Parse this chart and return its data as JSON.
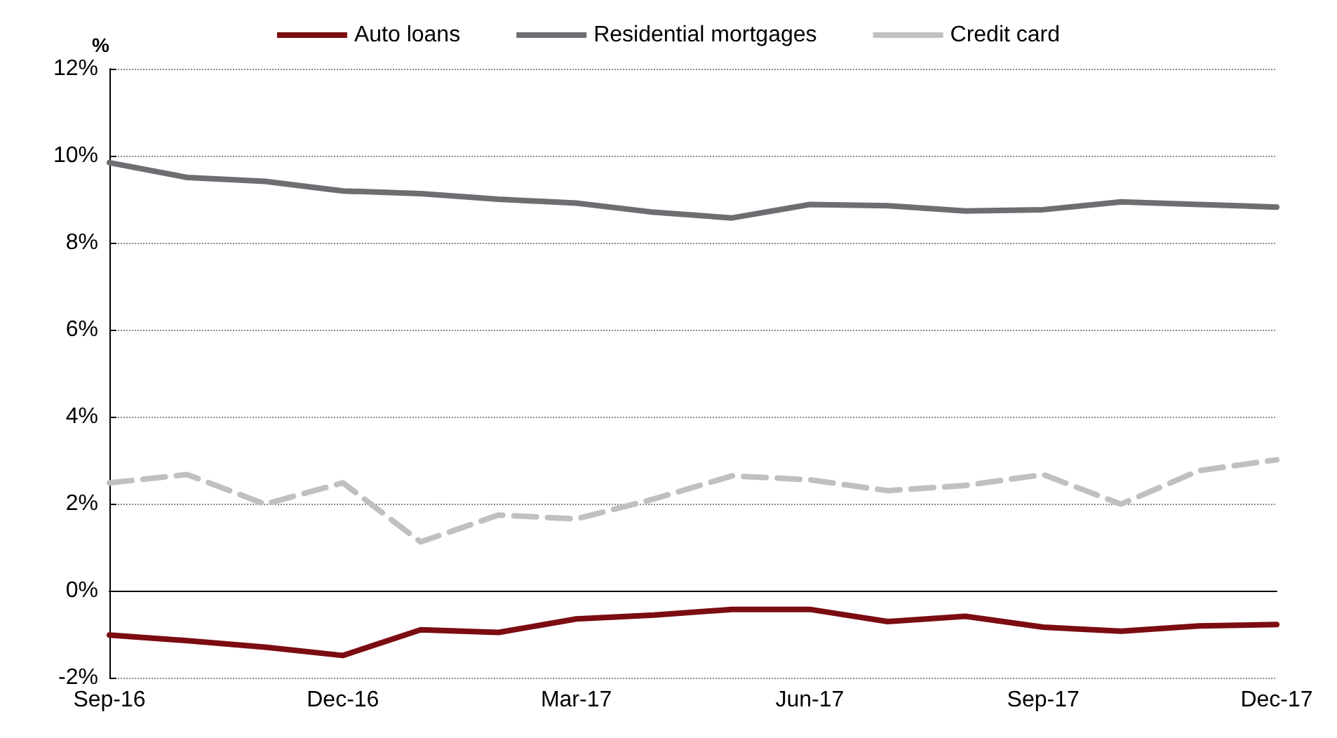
{
  "chart_data": {
    "type": "line",
    "ylabel": "%",
    "categories": [
      "Sep-16",
      null,
      null,
      "Dec-16",
      null,
      null,
      "Mar-17",
      null,
      null,
      "Jun-17",
      null,
      null,
      "Sep-17",
      null,
      null,
      "Dec-17"
    ],
    "series": [
      {
        "name": "Auto loans",
        "color": "#7b0c12",
        "line_style": "solid",
        "values": [
          -1.02,
          -1.15,
          -1.3,
          -1.49,
          -0.9,
          -0.96,
          -0.65,
          -0.56,
          -0.43,
          -0.43,
          -0.71,
          -0.59,
          -0.84,
          -0.93,
          -0.81,
          -0.78
        ]
      },
      {
        "name": "Residential mortgages",
        "color": "#6d6e71",
        "line_style": "solid",
        "values": [
          9.84,
          9.5,
          9.41,
          9.19,
          9.13,
          9.0,
          8.91,
          8.7,
          8.57,
          8.88,
          8.85,
          8.73,
          8.76,
          8.94,
          8.88,
          8.82
        ]
      },
      {
        "name": "Credit card",
        "color": "#c0c0c0",
        "line_style": "dashed",
        "values": [
          2.48,
          2.67,
          1.99,
          2.48,
          1.12,
          1.74,
          1.65,
          2.11,
          2.64,
          2.55,
          2.3,
          2.42,
          2.67,
          1.99,
          2.76,
          3.01
        ]
      }
    ],
    "ylim": [
      -2,
      12
    ],
    "yticks": [
      {
        "value": -2,
        "label": "-2%"
      },
      {
        "value": 0,
        "label": "0%"
      },
      {
        "value": 2,
        "label": "2%"
      },
      {
        "value": 4,
        "label": "4%"
      },
      {
        "value": 6,
        "label": "6%"
      },
      {
        "value": 8,
        "label": "8%"
      },
      {
        "value": 10,
        "label": "10%"
      },
      {
        "value": 12,
        "label": "12%"
      }
    ],
    "grid": "y",
    "legend": "top",
    "marker": "none"
  }
}
